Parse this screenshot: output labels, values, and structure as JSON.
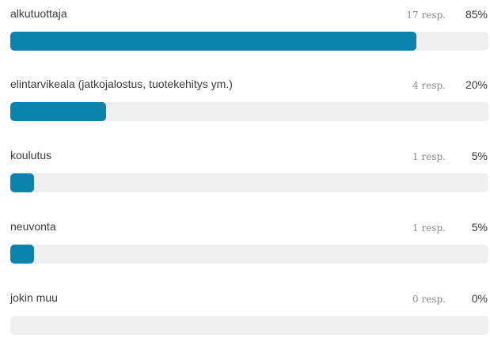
{
  "theme": {
    "bar_color": "#0a83ad",
    "track_color": "#efefef"
  },
  "results": [
    {
      "label": "alkutuottaja",
      "count": "17 resp.",
      "percent_text": "85%",
      "percent": 85
    },
    {
      "label": "elintarvikeala (jatkojalostus, tuotekehitys ym.)",
      "count": "4 resp.",
      "percent_text": "20%",
      "percent": 20
    },
    {
      "label": "koulutus",
      "count": "1 resp.",
      "percent_text": "5%",
      "percent": 5
    },
    {
      "label": "neuvonta",
      "count": "1 resp.",
      "percent_text": "5%",
      "percent": 5
    },
    {
      "label": "jokin muu",
      "count": "0 resp.",
      "percent_text": "0%",
      "percent": 0
    }
  ]
}
